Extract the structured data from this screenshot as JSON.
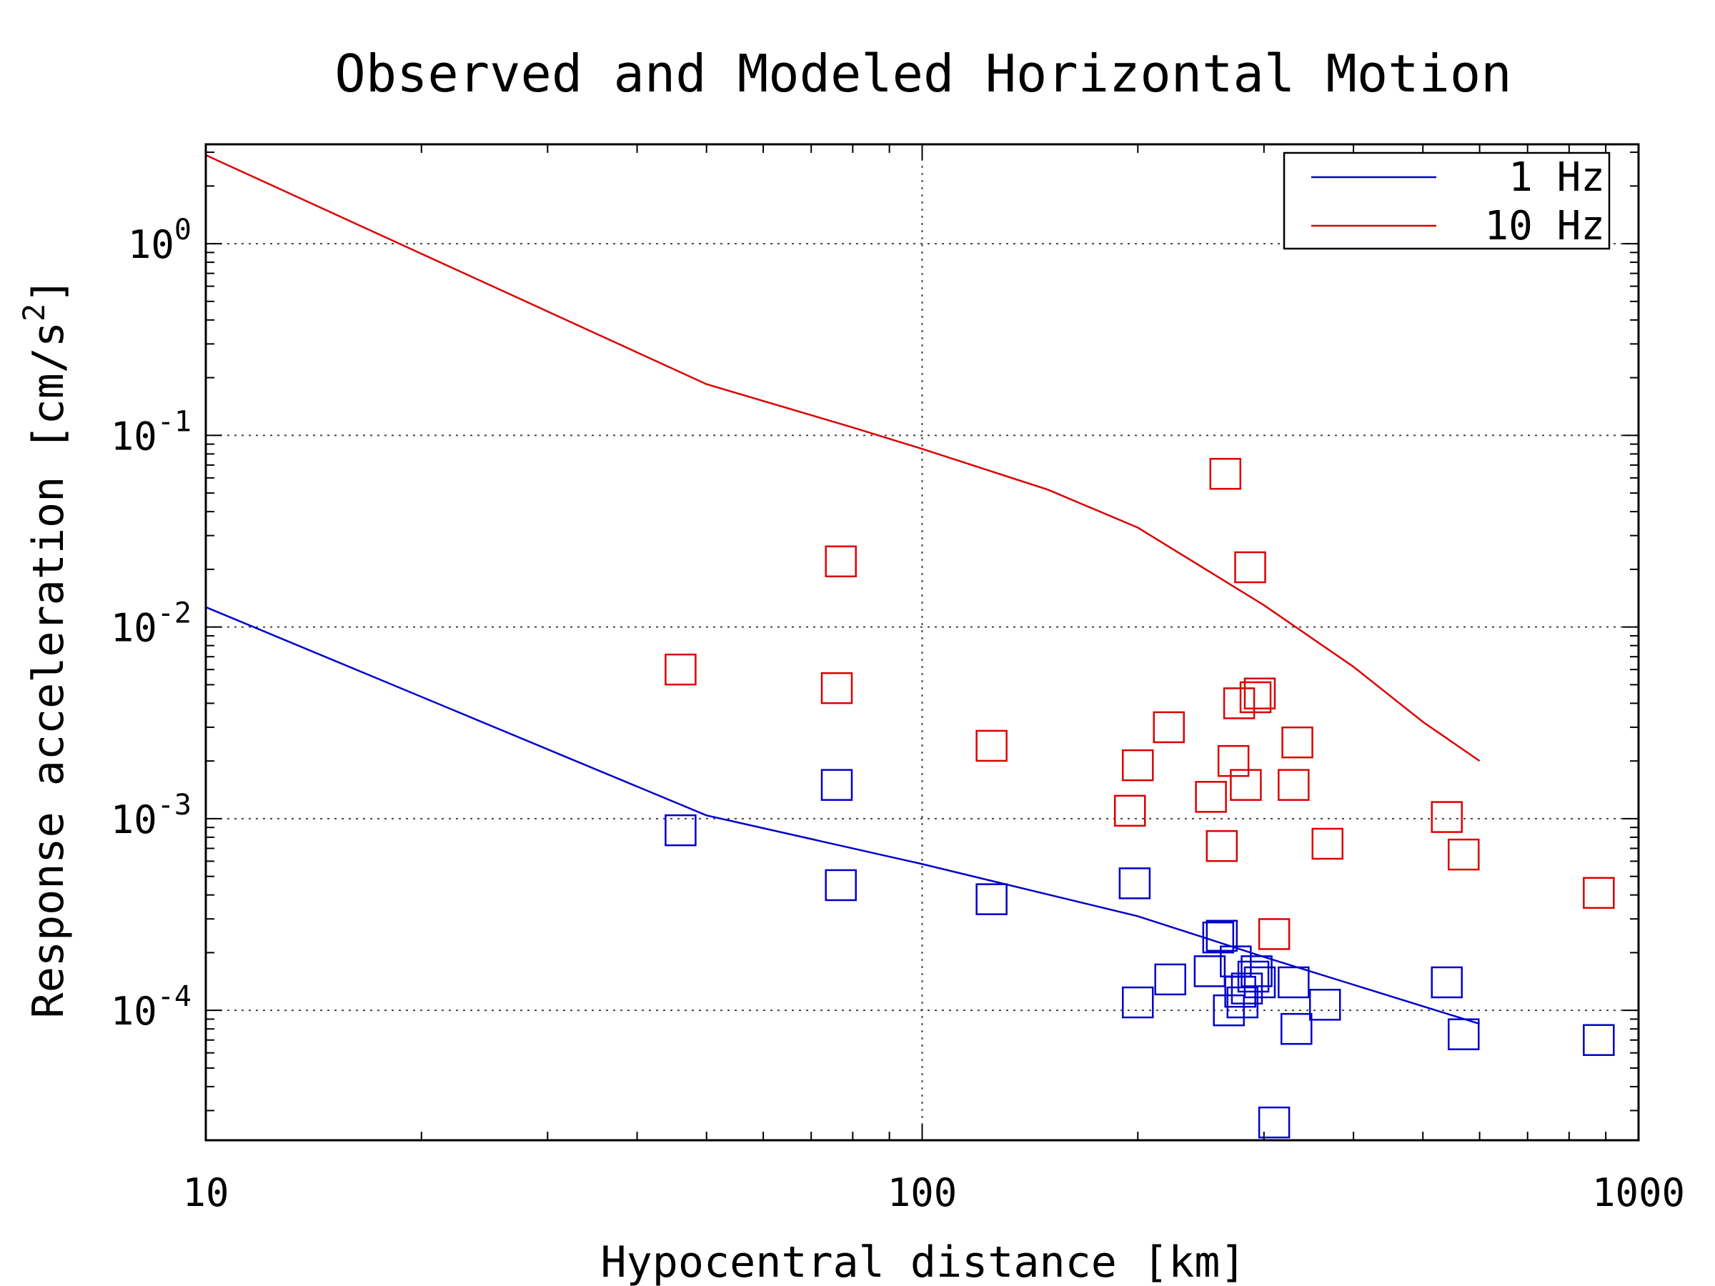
{
  "chart_data": {
    "type": "scatter",
    "title": "Observed and Modeled Horizontal Motion",
    "xlabel": "Hypocentral distance [km]",
    "ylabel": "Response acceleration [cm/s",
    "ylabel_sup": "2",
    "ylabel_end": "]",
    "x_scale": "log",
    "y_scale": "log",
    "xlim": [
      10,
      1000
    ],
    "ylim": [
      2.1e-05,
      3.3
    ],
    "x_ticks": [
      {
        "value": 10,
        "label": "10"
      },
      {
        "value": 100,
        "label": "100"
      },
      {
        "value": 1000,
        "label": "1000"
      }
    ],
    "y_ticks": [
      {
        "value": 1,
        "base": "10",
        "exp": "0"
      },
      {
        "value": 0.1,
        "base": "10",
        "exp": "-1"
      },
      {
        "value": 0.01,
        "base": "10",
        "exp": "-2"
      },
      {
        "value": 0.001,
        "base": "10",
        "exp": "-3"
      },
      {
        "value": 0.0001,
        "base": "10",
        "exp": "-4"
      }
    ],
    "grid": true,
    "legend": {
      "position": "top-right",
      "entries": [
        {
          "label": "1 Hz",
          "color": "#0000cc"
        },
        {
          "label": "10 Hz",
          "color": "#dd0000"
        }
      ]
    },
    "series": [
      {
        "name": "1 Hz",
        "color": "#0000cc",
        "line": [
          [
            10,
            0.0127
          ],
          [
            50,
            0.00104
          ],
          [
            100,
            0.00058
          ],
          [
            200,
            0.00031
          ],
          [
            300,
            0.00019
          ],
          [
            600,
            8.5e-05
          ]
        ],
        "points": [
          [
            46,
            0.00087
          ],
          [
            76,
            0.0015
          ],
          [
            77,
            0.00045
          ],
          [
            125,
            0.00038
          ],
          [
            198,
            0.00046
          ],
          [
            200,
            0.00011
          ],
          [
            222,
            0.000145
          ],
          [
            252,
            0.00016
          ],
          [
            259,
            0.00024
          ],
          [
            262,
            0.000245
          ],
          [
            268,
            0.0001
          ],
          [
            274,
            0.00018
          ],
          [
            278,
            0.000125
          ],
          [
            280,
            0.00011
          ],
          [
            284,
            0.00013
          ],
          [
            290,
            0.00015
          ],
          [
            293,
            0.00016
          ],
          [
            296,
            0.00014
          ],
          [
            310,
            2.6e-05
          ],
          [
            330,
            0.00014
          ],
          [
            333,
            8e-05
          ],
          [
            365,
            0.000107
          ],
          [
            540,
            0.00014
          ],
          [
            570,
            7.5e-05
          ],
          [
            880,
            7e-05
          ]
        ]
      },
      {
        "name": "10 Hz",
        "color": "#dd0000",
        "line": [
          [
            10,
            2.9
          ],
          [
            50,
            0.185
          ],
          [
            80,
            0.11
          ],
          [
            100,
            0.085
          ],
          [
            150,
            0.052
          ],
          [
            200,
            0.033
          ],
          [
            300,
            0.013
          ],
          [
            400,
            0.0062
          ],
          [
            500,
            0.0032
          ],
          [
            600,
            0.002
          ]
        ],
        "points": [
          [
            46,
            0.006
          ],
          [
            76,
            0.0048
          ],
          [
            77,
            0.022
          ],
          [
            125,
            0.0024
          ],
          [
            195,
            0.0011
          ],
          [
            200,
            0.0019
          ],
          [
            221,
            0.003
          ],
          [
            253,
            0.0013
          ],
          [
            262,
            0.00072
          ],
          [
            265,
            0.063
          ],
          [
            272,
            0.002
          ],
          [
            277,
            0.004
          ],
          [
            283,
            0.0015
          ],
          [
            287,
            0.0205
          ],
          [
            292,
            0.0043
          ],
          [
            296,
            0.0045
          ],
          [
            310,
            0.00025
          ],
          [
            330,
            0.0015
          ],
          [
            334,
            0.0025
          ],
          [
            368,
            0.00074
          ],
          [
            540,
            0.00102
          ],
          [
            570,
            0.00065
          ],
          [
            880,
            0.00041
          ]
        ]
      }
    ]
  }
}
